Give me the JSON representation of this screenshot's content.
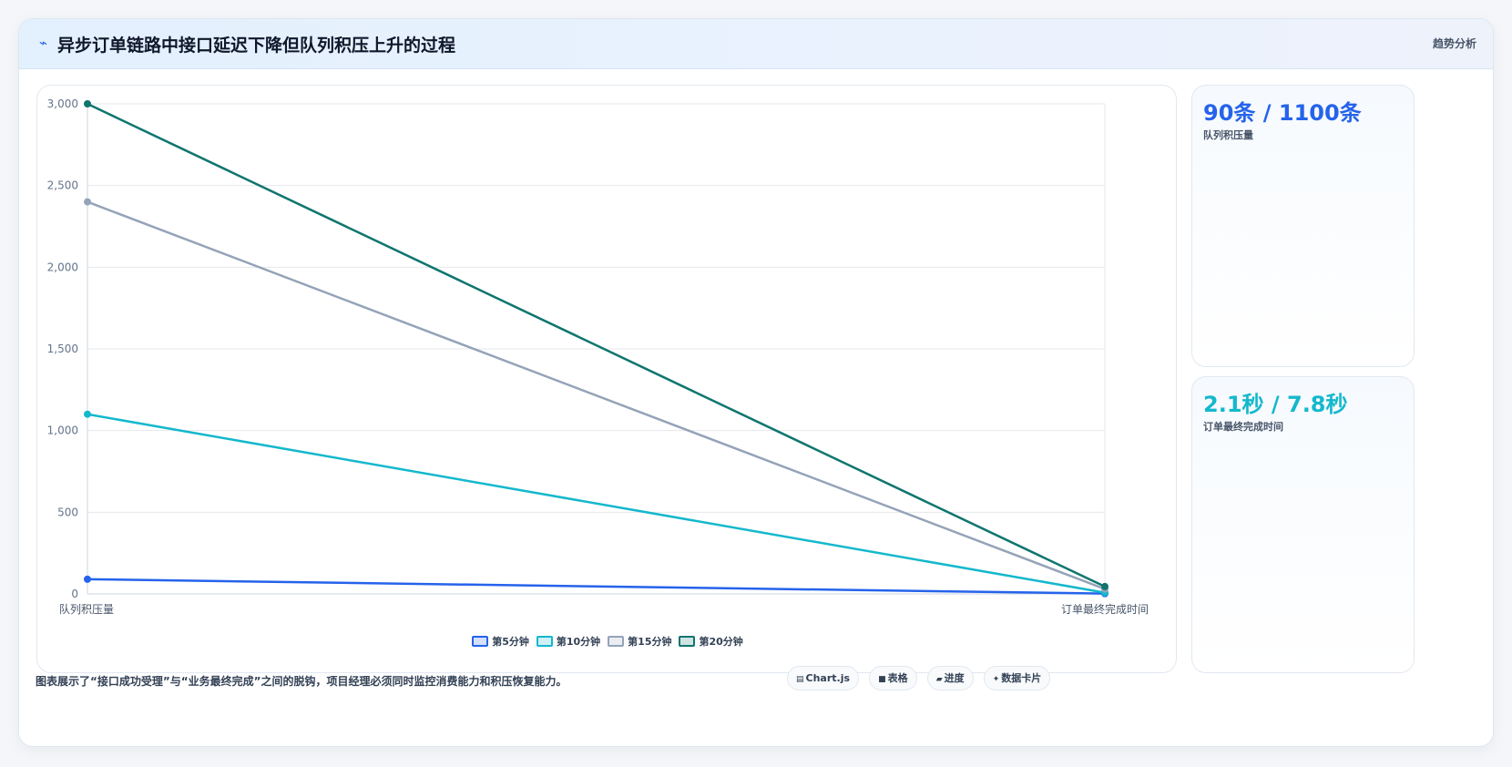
{
  "header": {
    "icon": "pulse-icon",
    "icon_glyph": "⌁",
    "title": "异步订单链路中接口延迟下降但队列积压上升的过程",
    "link": "趋势分析"
  },
  "chart_data": {
    "type": "line",
    "categories": [
      "队列积压量",
      "订单最终完成时间"
    ],
    "ylim": [
      0,
      3000
    ],
    "yticks": [
      0,
      500,
      1000,
      1500,
      2000,
      2500,
      3000
    ],
    "ytick_labels": [
      "0",
      "500",
      "1,000",
      "1,500",
      "2,000",
      "2,500",
      "3,000"
    ],
    "grid": true,
    "legend_position": "bottom",
    "series": [
      {
        "name": "第5分钟",
        "values": [
          90,
          2.1
        ],
        "color": "#2563eb"
      },
      {
        "name": "第10分钟",
        "values": [
          1100,
          7.8
        ],
        "color": "#14b8cc"
      },
      {
        "name": "第15分钟",
        "values": [
          2400,
          30
        ],
        "color": "#94a3b8"
      },
      {
        "name": "第20分钟",
        "values": [
          3000,
          45
        ],
        "color": "#0f766e"
      }
    ]
  },
  "stats": [
    {
      "value": "90条 / 1100条",
      "label": "队列积压量",
      "color": "#2563eb"
    },
    {
      "value": "2.1秒 / 7.8秒",
      "label": "订单最终完成时间",
      "color": "#14b8cc"
    }
  ],
  "footer": {
    "text": "图表展示了“接口成功受理”与“业务最终完成”之间的脱钩，项目经理必须同时监控消费能力和积压恢复能力。",
    "pills": [
      {
        "icon": "chart-icon",
        "glyph": "▤",
        "label": "Chart.js"
      },
      {
        "icon": "table-icon",
        "glyph": "■",
        "label": "表格"
      },
      {
        "icon": "progress-icon",
        "glyph": "▰",
        "label": "进度"
      },
      {
        "icon": "card-icon",
        "glyph": "✦",
        "label": "数据卡片"
      }
    ]
  }
}
